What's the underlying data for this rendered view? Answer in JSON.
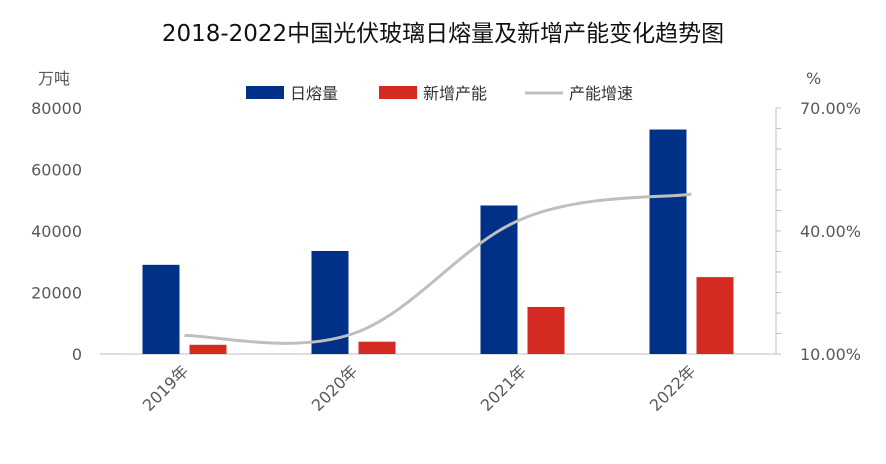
{
  "chart_data": {
    "type": "bar",
    "title": "2018-2022中国光伏玻璃日熔量及新增产能变化趋势图",
    "categories": [
      "2019年",
      "2020年",
      "2021年",
      "2022年"
    ],
    "series": [
      {
        "name": "日熔量",
        "type": "bar",
        "axis": "left",
        "color": "#003087",
        "values": [
          29000,
          33500,
          48300,
          73000
        ]
      },
      {
        "name": "新增产能",
        "type": "bar",
        "axis": "left",
        "color": "#D42A21",
        "values": [
          3000,
          4000,
          15300,
          25000
        ]
      },
      {
        "name": "产能增速",
        "type": "line",
        "axis": "right",
        "color": "#BFBFBF",
        "values": [
          14.5,
          15.0,
          43.0,
          49.0
        ]
      }
    ],
    "left_axis": {
      "unit": "万吨",
      "range": [
        0,
        80000
      ],
      "ticks": [
        "0",
        "20000",
        "40000",
        "60000",
        "80000"
      ]
    },
    "right_axis": {
      "unit": "%",
      "range": [
        10,
        70
      ],
      "ticks": [
        "10.00%",
        "40.00%",
        "70.00%"
      ]
    },
    "legend_position": "top-center",
    "grid": false
  }
}
